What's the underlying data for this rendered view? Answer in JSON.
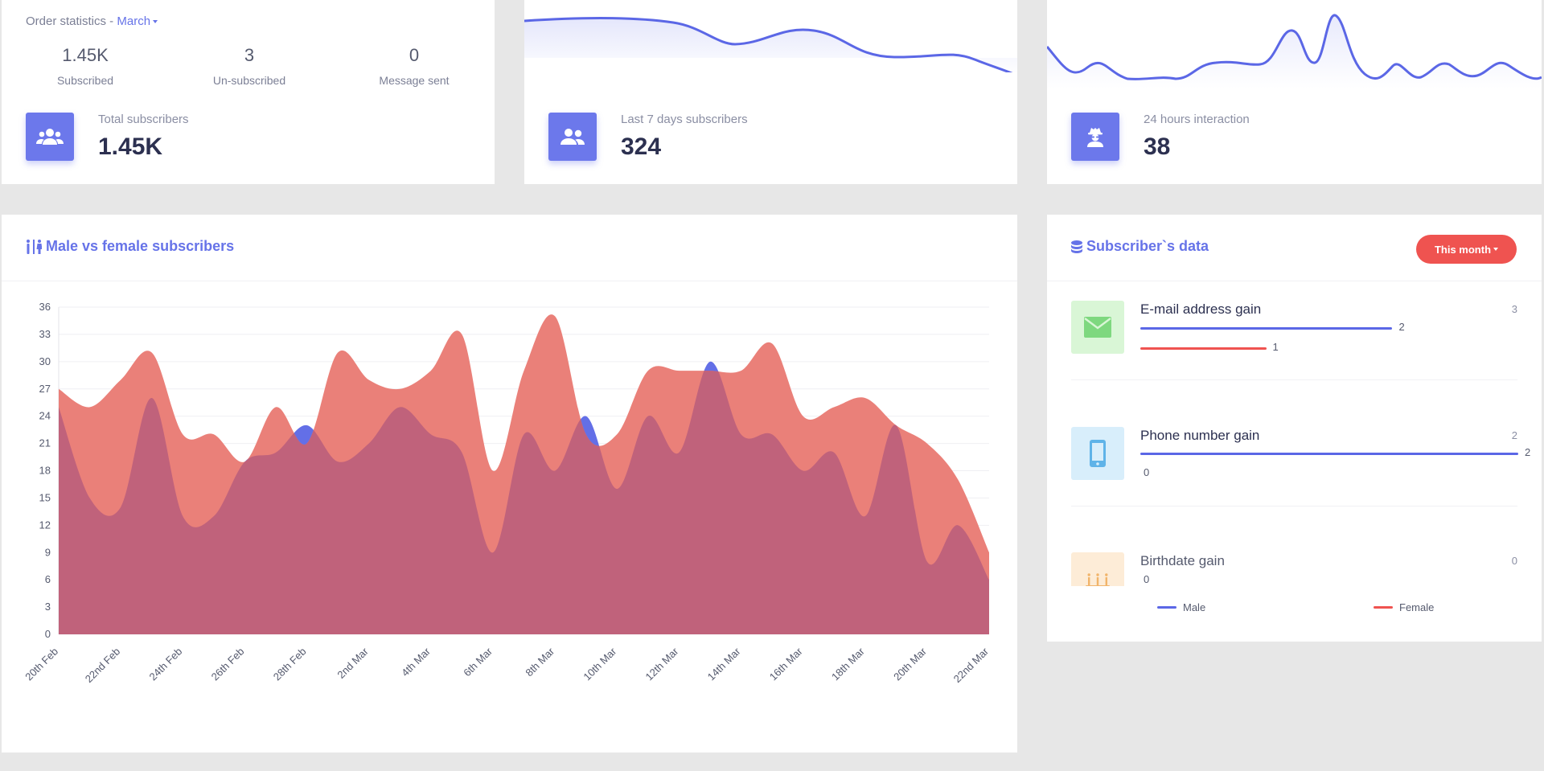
{
  "order_stats": {
    "title": "Order statistics - ",
    "month": "March",
    "stats": [
      {
        "value": "1.45K",
        "label": "Subscribed"
      },
      {
        "value": "3",
        "label": "Un-subscribed"
      },
      {
        "value": "0",
        "label": "Message sent"
      }
    ],
    "total_label": "Total subscribers",
    "total_value": "1.45K"
  },
  "last7": {
    "label": "Last 7 days subscribers",
    "value": "324"
  },
  "h24": {
    "label": "24 hours interaction",
    "value": "38"
  },
  "gender_chart": {
    "title": "Male vs female subscribers"
  },
  "subscribers_data": {
    "title": "Subscriber`s data",
    "period_button": "This month",
    "items": [
      {
        "label": "E-mail address gain",
        "total": "3",
        "male": "2",
        "female": "1",
        "male_frac": 0.667,
        "female_frac": 0.333,
        "icon": "envelope-icon"
      },
      {
        "label": "Phone number gain",
        "total": "2",
        "male": "2",
        "female": "0",
        "male_frac": 1.0,
        "female_frac": 0.0,
        "icon": "mobile-phone-icon"
      },
      {
        "label": "Birthdate gain",
        "total": "0",
        "male": "0",
        "female": "0",
        "male_frac": 0.0,
        "female_frac": 0.0,
        "icon": "birthday-cake-icon"
      }
    ],
    "legend": [
      "Male",
      "Female"
    ]
  },
  "colors": {
    "accent": "#6c78eb",
    "male": "#5b67e6",
    "female": "#ef5350",
    "female_fill": "#ea8079",
    "overlap_fill": "#c0627b"
  },
  "chart_data": {
    "type": "area",
    "title": "",
    "xlabel": "",
    "ylabel": "",
    "ylim": [
      0,
      36
    ],
    "yticks": [
      0,
      3,
      6,
      9,
      12,
      15,
      18,
      21,
      24,
      27,
      30,
      33,
      36
    ],
    "x_tick_labels": [
      "20th Feb",
      "22nd Feb",
      "24th Feb",
      "26th Feb",
      "28th Feb",
      "2nd Mar",
      "4th Mar",
      "6th Mar",
      "8th Mar",
      "10th Mar",
      "12th Mar",
      "14th Mar",
      "16th Mar",
      "18th Mar",
      "20th Mar",
      "22nd Mar"
    ],
    "x": [
      "20th Feb",
      "21st Feb",
      "22nd Feb",
      "23rd Feb",
      "24th Feb",
      "25th Feb",
      "26th Feb",
      "27th Feb",
      "28th Feb",
      "1st Mar",
      "2nd Mar",
      "3rd Mar",
      "4th Mar",
      "5th Mar",
      "6th Mar",
      "7th Mar",
      "8th Mar",
      "9th Mar",
      "10th Mar",
      "11th Mar",
      "12th Mar",
      "13th Mar",
      "14th Mar",
      "15th Mar",
      "16th Mar",
      "17th Mar",
      "18th Mar",
      "19th Mar",
      "20th Mar",
      "21st Mar",
      "22nd Mar"
    ],
    "legend": "bottom",
    "grid": true,
    "series": [
      {
        "name": "Male",
        "values": [
          25,
          15,
          14,
          26,
          13,
          13,
          19,
          20,
          23,
          19,
          21,
          25,
          22,
          20,
          9,
          22,
          18,
          24,
          16,
          24,
          20,
          30,
          22,
          22,
          18,
          20,
          13,
          23,
          8,
          12,
          6
        ]
      },
      {
        "name": "Female",
        "values": [
          27,
          25,
          28,
          31,
          22,
          22,
          19,
          25,
          21,
          31,
          28,
          27,
          29,
          33,
          18,
          29,
          35,
          22,
          22,
          29,
          29,
          29,
          29,
          32,
          24,
          25,
          26,
          23,
          21,
          17,
          9
        ]
      }
    ]
  }
}
